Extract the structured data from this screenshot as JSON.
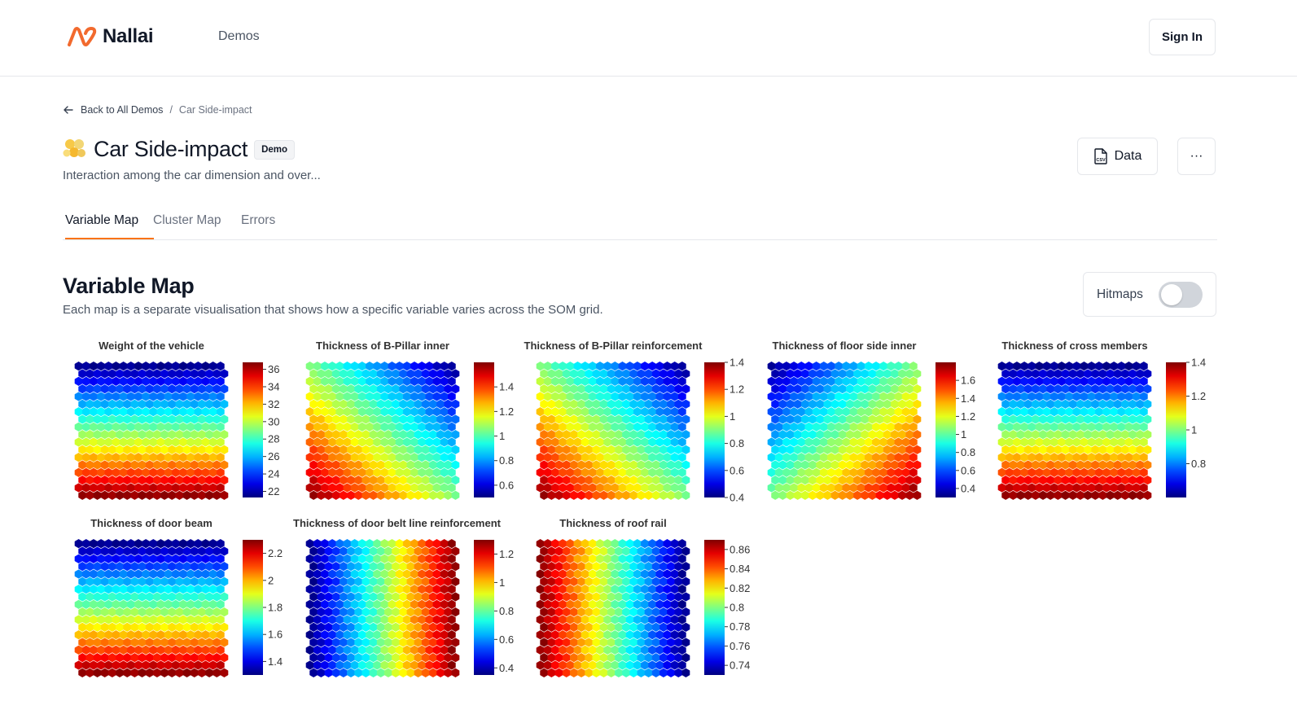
{
  "header": {
    "logo_text": "Nallai",
    "nav_demos": "Demos",
    "sign_in": "Sign In"
  },
  "breadcrumb": {
    "back_label": "Back to All Demos",
    "separator": "/",
    "current": "Car Side-impact"
  },
  "page": {
    "title": "Car Side-impact",
    "badge": "Demo",
    "subtitle": "Interaction among the car dimension and over...",
    "data_button": "Data",
    "data_icon_text": "CSV",
    "more_button": "···"
  },
  "tabs": [
    {
      "label": "Variable Map",
      "active": true
    },
    {
      "label": "Cluster Map",
      "active": false
    },
    {
      "label": "Errors",
      "active": false
    }
  ],
  "section": {
    "title": "Variable Map",
    "description": "Each map is a separate visualisation that shows how a specific variable varies across the SOM grid.",
    "hitmaps_label": "Hitmaps",
    "hitmaps_on": false
  },
  "colors": {
    "accent": "#f97316",
    "logo": "#f26a2e",
    "colormap": "jet"
  },
  "chart_data": [
    {
      "type": "heatmap",
      "title": "Weight of the vehicle",
      "colorbar_ticks": [
        "36",
        "34",
        "32",
        "30",
        "28",
        "26",
        "24",
        "22"
      ],
      "range": [
        21.3,
        36.8
      ],
      "gradient": "low at top, high at bottom"
    },
    {
      "type": "heatmap",
      "title": "Thickness of B-Pillar inner",
      "colorbar_ticks": [
        "1.4",
        "1.2",
        "1",
        "0.8",
        "0.6"
      ],
      "range": [
        0.5,
        1.6
      ],
      "gradient": "low at top-right, high at bottom-left"
    },
    {
      "type": "heatmap",
      "title": "Thickness of B-Pillar reinforcement",
      "colorbar_ticks": [
        "1.4",
        "1.2",
        "1",
        "0.8",
        "0.6",
        "0.4"
      ],
      "range": [
        0.4,
        1.4
      ],
      "gradient": "low at top-right, high at bottom-left"
    },
    {
      "type": "heatmap",
      "title": "Thickness of floor side inner",
      "colorbar_ticks": [
        "1.6",
        "1.4",
        "1.2",
        "1",
        "0.8",
        "0.6",
        "0.4"
      ],
      "range": [
        0.3,
        1.8
      ],
      "gradient": "low at top-left, high at bottom-right"
    },
    {
      "type": "heatmap",
      "title": "Thickness of cross members",
      "colorbar_ticks": [
        "1.4",
        "1.2",
        "1",
        "0.8"
      ],
      "range": [
        0.6,
        1.4
      ],
      "gradient": "low at top, high at bottom"
    },
    {
      "type": "heatmap",
      "title": "Thickness of door beam",
      "colorbar_ticks": [
        "2.2",
        "2",
        "1.8",
        "1.6",
        "1.4"
      ],
      "range": [
        1.3,
        2.3
      ],
      "gradient": "low at top, high at bottom"
    },
    {
      "type": "heatmap",
      "title": "Thickness of door belt line reinforcement",
      "colorbar_ticks": [
        "1.2",
        "1",
        "0.8",
        "0.6",
        "0.4"
      ],
      "range": [
        0.35,
        1.3
      ],
      "gradient": "low at left, high at right"
    },
    {
      "type": "heatmap",
      "title": "Thickness of roof rail",
      "colorbar_ticks": [
        "0.86",
        "0.84",
        "0.82",
        "0.8",
        "0.78",
        "0.76",
        "0.74"
      ],
      "range": [
        0.73,
        0.87
      ],
      "gradient": "high at left, low at right"
    }
  ]
}
